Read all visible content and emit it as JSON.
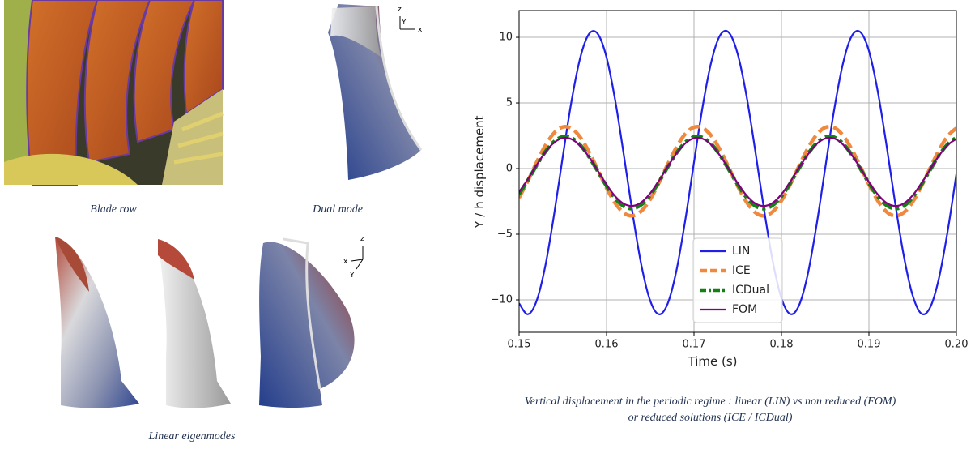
{
  "figures": {
    "blade_row": {
      "caption": "Blade row"
    },
    "dual_mode": {
      "caption": "Dual mode",
      "triad": [
        "z",
        "Y",
        "x"
      ]
    },
    "eigenmodes": {
      "caption": "Linear eigenmodes",
      "triad": [
        "z",
        "x",
        "Y"
      ]
    }
  },
  "chart_data": {
    "type": "line",
    "xlabel": "Time (s)",
    "ylabel": "Y / h displacement",
    "caption": [
      "Vertical displacement in the periodic regime : linear (LIN) vs non reduced (FOM)",
      "or reduced solutions (ICE / ICDual)"
    ],
    "x": [
      0.15,
      0.151,
      0.152,
      0.153,
      0.154,
      0.155,
      0.156,
      0.157,
      0.158,
      0.159,
      0.16,
      0.161,
      0.162,
      0.163,
      0.164,
      0.165,
      0.166,
      0.167,
      0.168,
      0.169,
      0.17,
      0.171,
      0.172,
      0.173,
      0.174,
      0.175,
      0.176,
      0.177,
      0.178,
      0.179,
      0.18,
      0.181,
      0.182,
      0.183,
      0.184,
      0.185,
      0.186,
      0.187,
      0.188,
      0.189,
      0.19,
      0.191,
      0.192,
      0.193,
      0.194,
      0.195,
      0.196,
      0.197,
      0.198,
      0.199,
      0.2
    ],
    "xlim": [
      0.15,
      0.2
    ],
    "xticks": [
      0.15,
      0.16,
      0.17,
      0.18,
      0.19,
      {
        "value": 0.2,
        "label": "0.20"
      }
    ],
    "ylim": [
      -12.47,
      12.04
    ],
    "yticks": [
      {
        "value": -10,
        "label": "−10"
      },
      {
        "value": -5,
        "label": "−5"
      },
      0,
      5,
      10
    ],
    "grid": true,
    "legend": "lower center",
    "series": [
      {
        "name": "LIN",
        "color": "#1f1fe8",
        "linestyle": "solid",
        "values": [
          -10.27,
          -11.1,
          -10.08,
          -7.41,
          -3.51,
          0.93,
          5.16,
          8.46,
          10.26,
          10.26,
          8.47,
          5.16,
          0.93,
          -3.51,
          -7.41,
          -10.08,
          -11.1,
          -10.27,
          -7.74,
          -3.94,
          0.48,
          4.77,
          8.19,
          10.17,
          10.35,
          8.72,
          5.55,
          1.38,
          -3.08,
          -7.05,
          -9.88,
          -11.08,
          -10.43,
          -8.07,
          -4.36,
          0.03,
          4.37,
          7.91,
          10.05,
          10.41,
          8.97,
          5.92,
          1.83,
          -2.63,
          -6.69,
          -9.66,
          -11.05,
          -10.58,
          -8.37,
          -4.78,
          -0.42
        ]
      },
      {
        "name": "ICE",
        "color": "#f0883e",
        "linestyle": "dashed",
        "values": [
          -2.22,
          -0.94,
          0.47,
          1.76,
          2.71,
          3.17,
          3.06,
          2.38,
          1.27,
          -0.09,
          -1.48,
          -2.64,
          -3.39,
          -3.59,
          -3.22,
          -2.33,
          -1.07,
          0.33,
          1.64,
          2.64,
          3.15,
          3.09,
          2.48,
          1.4,
          0.05,
          -1.34,
          -2.54,
          -3.34,
          -3.6,
          -3.28,
          -2.44,
          -1.21,
          0.19,
          1.52,
          2.56,
          3.13,
          3.13,
          2.56,
          1.52,
          0.19,
          -1.21,
          -2.43,
          -3.28,
          -3.6,
          -3.34,
          -2.54,
          -1.35,
          0.04,
          1.39,
          2.47,
          3.09
        ]
      },
      {
        "name": "ICDual",
        "color": "#138013",
        "linestyle": "dashdot",
        "values": [
          -1.93,
          -0.9,
          0.24,
          1.28,
          2.06,
          2.43,
          2.33,
          1.79,
          0.89,
          -0.21,
          -1.33,
          -2.27,
          -2.88,
          -3.04,
          -2.74,
          -2.02,
          -1.01,
          0.13,
          1.19,
          2.0,
          2.41,
          2.36,
          1.86,
          0.99,
          -0.1,
          -1.22,
          -2.19,
          -2.84,
          -3.05,
          -2.79,
          -2.11,
          -1.12,
          0.01,
          1.09,
          1.93,
          2.39,
          2.39,
          1.93,
          1.09,
          0.02,
          -1.11,
          -2.11,
          -2.79,
          -3.05,
          -2.84,
          -2.19,
          -1.23,
          -0.1,
          0.99,
          1.86,
          2.36
        ]
      },
      {
        "name": "FOM",
        "color": "#800080",
        "linestyle": "solid",
        "values": [
          -1.79,
          -0.81,
          0.26,
          1.25,
          1.98,
          2.33,
          2.24,
          1.73,
          0.88,
          -0.17,
          -1.23,
          -2.12,
          -2.69,
          -2.84,
          -2.56,
          -1.88,
          -0.92,
          0.15,
          1.16,
          1.92,
          2.31,
          2.27,
          1.8,
          0.97,
          -0.06,
          -1.12,
          -2.04,
          -2.65,
          -2.85,
          -2.61,
          -1.96,
          -1.02,
          0.05,
          1.06,
          1.86,
          2.29,
          2.3,
          1.86,
          1.07,
          0.05,
          -1.02,
          -1.96,
          -2.61,
          -2.85,
          -2.65,
          -2.04,
          -1.13,
          -0.06,
          0.97,
          1.79,
          2.27
        ]
      }
    ]
  }
}
